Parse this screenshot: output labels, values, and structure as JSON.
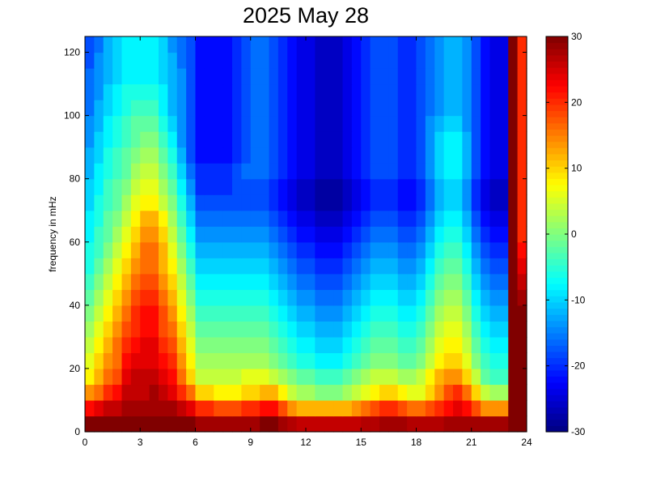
{
  "chart_data": {
    "type": "heatmap",
    "title": "2025 May 28",
    "xlabel": "",
    "ylabel": "frequency in mHz",
    "xlim": [
      0,
      24
    ],
    "ylim": [
      0,
      125
    ],
    "x_ticks": [
      0,
      3,
      6,
      9,
      12,
      15,
      18,
      21,
      24
    ],
    "y_ticks": [
      0,
      20,
      40,
      60,
      80,
      100,
      120
    ],
    "colorbar": {
      "colormap": "jet",
      "range": [
        -30,
        30
      ],
      "ticks": [
        -30,
        -20,
        -10,
        0,
        10,
        20,
        30
      ],
      "unit": ""
    },
    "grid": false,
    "x_cells": 48,
    "y_cells": 25,
    "x_values_hours": [
      0.25,
      0.75,
      1.25,
      1.75,
      2.25,
      2.75,
      3.25,
      3.75,
      4.25,
      4.75,
      5.25,
      5.75,
      6.25,
      6.75,
      7.25,
      7.75,
      8.25,
      8.75,
      9.25,
      9.75,
      10.25,
      10.75,
      11.25,
      11.75,
      12.25,
      12.75,
      13.25,
      13.75,
      14.25,
      14.75,
      15.25,
      15.75,
      16.25,
      16.75,
      17.25,
      17.75,
      18.25,
      18.75,
      19.25,
      19.75,
      20.25,
      20.75,
      21.25,
      21.75,
      22.25,
      22.75,
      23.25,
      23.75
    ],
    "y_values_mHz": [
      2.5,
      7.5,
      12.5,
      17.5,
      22.5,
      27.5,
      32.5,
      37.5,
      42.5,
      47.5,
      52.5,
      57.5,
      62.5,
      67.5,
      72.5,
      77.5,
      82.5,
      87.5,
      92.5,
      97.5,
      102.5,
      107.5,
      112.5,
      117.5,
      122.5
    ],
    "z_approx": {
      "description_rows": "approximate power level (colorbar units) per frequency band (rows, low→high) and half-hour (columns)",
      "rows": [
        [
          30,
          30,
          30,
          30,
          30,
          30,
          30,
          30,
          30,
          30,
          30,
          30,
          28,
          28,
          28,
          28,
          28,
          28,
          28,
          30,
          30,
          28,
          27,
          26,
          26,
          26,
          26,
          26,
          26,
          26,
          27,
          27,
          28,
          28,
          28,
          27,
          27,
          27,
          27,
          28,
          28,
          28,
          28,
          28,
          28,
          28,
          30,
          30
        ],
        [
          22,
          24,
          26,
          26,
          28,
          28,
          28,
          28,
          28,
          28,
          26,
          24,
          20,
          20,
          18,
          18,
          18,
          20,
          20,
          22,
          22,
          18,
          14,
          12,
          12,
          12,
          12,
          12,
          12,
          14,
          16,
          18,
          20,
          20,
          18,
          16,
          16,
          18,
          20,
          22,
          24,
          22,
          18,
          14,
          14,
          14,
          30,
          30
        ],
        [
          14,
          16,
          20,
          22,
          26,
          26,
          26,
          28,
          26,
          24,
          20,
          16,
          10,
          10,
          8,
          8,
          8,
          10,
          10,
          12,
          12,
          8,
          4,
          2,
          2,
          0,
          0,
          0,
          2,
          4,
          6,
          8,
          10,
          10,
          8,
          6,
          6,
          10,
          14,
          18,
          20,
          16,
          10,
          4,
          2,
          2,
          30,
          30
        ],
        [
          8,
          12,
          16,
          18,
          24,
          26,
          26,
          26,
          24,
          22,
          16,
          10,
          4,
          4,
          4,
          4,
          4,
          6,
          6,
          6,
          4,
          2,
          0,
          -2,
          -2,
          -4,
          -4,
          -4,
          -2,
          0,
          2,
          4,
          4,
          4,
          2,
          2,
          4,
          8,
          12,
          14,
          14,
          10,
          4,
          -2,
          -4,
          -4,
          30,
          30
        ],
        [
          6,
          10,
          14,
          16,
          22,
          24,
          24,
          24,
          22,
          20,
          14,
          8,
          2,
          2,
          2,
          2,
          2,
          2,
          2,
          2,
          0,
          -2,
          -4,
          -6,
          -6,
          -8,
          -8,
          -8,
          -6,
          -4,
          -2,
          0,
          0,
          0,
          -2,
          -2,
          0,
          4,
          8,
          10,
          10,
          6,
          0,
          -4,
          -6,
          -6,
          30,
          30
        ],
        [
          4,
          8,
          12,
          16,
          20,
          22,
          24,
          24,
          20,
          18,
          12,
          6,
          0,
          0,
          0,
          0,
          0,
          0,
          0,
          0,
          -2,
          -4,
          -6,
          -8,
          -8,
          -10,
          -10,
          -10,
          -8,
          -6,
          -4,
          -2,
          -2,
          -2,
          -4,
          -4,
          -2,
          2,
          6,
          8,
          8,
          4,
          -2,
          -6,
          -8,
          -8,
          30,
          30
        ],
        [
          2,
          6,
          10,
          14,
          18,
          20,
          22,
          22,
          18,
          16,
          10,
          4,
          -2,
          -2,
          -2,
          -2,
          -2,
          -2,
          -2,
          -2,
          -4,
          -6,
          -8,
          -10,
          -10,
          -12,
          -12,
          -12,
          -10,
          -8,
          -6,
          -4,
          -4,
          -4,
          -6,
          -6,
          -4,
          0,
          4,
          6,
          6,
          2,
          -4,
          -8,
          -10,
          -10,
          30,
          30
        ],
        [
          0,
          4,
          8,
          12,
          16,
          20,
          22,
          22,
          18,
          14,
          8,
          2,
          -4,
          -4,
          -4,
          -4,
          -4,
          -4,
          -4,
          -4,
          -6,
          -8,
          -10,
          -12,
          -12,
          -14,
          -14,
          -14,
          -12,
          -10,
          -8,
          -6,
          -6,
          -6,
          -8,
          -8,
          -6,
          -2,
          2,
          4,
          4,
          0,
          -6,
          -10,
          -12,
          -12,
          30,
          30
        ],
        [
          -2,
          2,
          6,
          10,
          14,
          18,
          20,
          20,
          16,
          12,
          6,
          0,
          -6,
          -6,
          -6,
          -6,
          -6,
          -6,
          -6,
          -6,
          -8,
          -10,
          -12,
          -14,
          -14,
          -16,
          -16,
          -16,
          -14,
          -12,
          -10,
          -8,
          -8,
          -8,
          -10,
          -10,
          -8,
          -4,
          0,
          2,
          2,
          -2,
          -8,
          -12,
          -14,
          -14,
          30,
          28
        ],
        [
          -4,
          0,
          4,
          8,
          12,
          16,
          18,
          18,
          14,
          10,
          4,
          -2,
          -8,
          -8,
          -8,
          -8,
          -8,
          -8,
          -8,
          -8,
          -10,
          -12,
          -14,
          -16,
          -16,
          -18,
          -18,
          -18,
          -16,
          -14,
          -12,
          -10,
          -10,
          -10,
          -12,
          -12,
          -10,
          -6,
          -2,
          0,
          0,
          -4,
          -10,
          -14,
          -16,
          -16,
          30,
          26
        ],
        [
          -6,
          -2,
          2,
          6,
          10,
          14,
          16,
          16,
          12,
          8,
          2,
          -4,
          -10,
          -10,
          -10,
          -10,
          -10,
          -10,
          -10,
          -10,
          -12,
          -14,
          -16,
          -18,
          -18,
          -20,
          -20,
          -20,
          -18,
          -16,
          -14,
          -12,
          -12,
          -12,
          -14,
          -14,
          -12,
          -8,
          -4,
          -2,
          -2,
          -6,
          -12,
          -16,
          -18,
          -18,
          30,
          24
        ],
        [
          -6,
          -4,
          0,
          4,
          8,
          12,
          16,
          16,
          12,
          6,
          0,
          -6,
          -12,
          -12,
          -12,
          -12,
          -12,
          -12,
          -12,
          -12,
          -14,
          -16,
          -18,
          -20,
          -20,
          -22,
          -22,
          -22,
          -20,
          -18,
          -16,
          -14,
          -14,
          -14,
          -16,
          -16,
          -14,
          -10,
          -6,
          -4,
          -4,
          -8,
          -14,
          -18,
          -20,
          -20,
          30,
          22
        ],
        [
          -8,
          -4,
          -2,
          2,
          6,
          10,
          14,
          14,
          10,
          4,
          -2,
          -8,
          -14,
          -14,
          -14,
          -14,
          -14,
          -14,
          -14,
          -14,
          -16,
          -18,
          -20,
          -22,
          -22,
          -24,
          -24,
          -24,
          -22,
          -20,
          -18,
          -16,
          -16,
          -16,
          -18,
          -18,
          -16,
          -12,
          -8,
          -6,
          -6,
          -10,
          -16,
          -20,
          -22,
          -22,
          30,
          20
        ],
        [
          -8,
          -6,
          -2,
          0,
          4,
          8,
          12,
          12,
          8,
          2,
          -4,
          -10,
          -16,
          -16,
          -16,
          -16,
          -16,
          -16,
          -16,
          -16,
          -18,
          -20,
          -22,
          -24,
          -24,
          -26,
          -26,
          -26,
          -24,
          -22,
          -20,
          -18,
          -18,
          -18,
          -20,
          -20,
          -18,
          -14,
          -10,
          -8,
          -8,
          -12,
          -18,
          -22,
          -24,
          -24,
          30,
          20
        ],
        [
          -10,
          -6,
          -4,
          -2,
          2,
          6,
          8,
          8,
          4,
          0,
          -6,
          -12,
          -18,
          -18,
          -18,
          -18,
          -18,
          -18,
          -18,
          -18,
          -20,
          -22,
          -24,
          -26,
          -26,
          -28,
          -28,
          -28,
          -26,
          -24,
          -22,
          -20,
          -20,
          -20,
          -22,
          -22,
          -20,
          -16,
          -12,
          -10,
          -10,
          -14,
          -20,
          -24,
          -26,
          -26,
          30,
          20
        ],
        [
          -10,
          -8,
          -4,
          -2,
          0,
          4,
          6,
          6,
          2,
          -2,
          -8,
          -14,
          -20,
          -20,
          -20,
          -20,
          -18,
          -18,
          -18,
          -18,
          -20,
          -22,
          -24,
          -26,
          -26,
          -28,
          -28,
          -28,
          -26,
          -24,
          -22,
          -20,
          -20,
          -20,
          -22,
          -22,
          -20,
          -16,
          -12,
          -10,
          -10,
          -14,
          -20,
          -24,
          -26,
          -26,
          30,
          20
        ],
        [
          -12,
          -8,
          -6,
          -4,
          -2,
          2,
          4,
          4,
          0,
          -4,
          -10,
          -16,
          -20,
          -20,
          -20,
          -20,
          -18,
          -16,
          -16,
          -16,
          -18,
          -20,
          -22,
          -24,
          -24,
          -26,
          -26,
          -26,
          -24,
          -22,
          -20,
          -18,
          -18,
          -18,
          -20,
          -20,
          -18,
          -14,
          -10,
          -8,
          -8,
          -12,
          -18,
          -22,
          -24,
          -24,
          30,
          20
        ],
        [
          -12,
          -10,
          -6,
          -4,
          -2,
          0,
          2,
          2,
          -2,
          -6,
          -12,
          -18,
          -22,
          -22,
          -22,
          -22,
          -20,
          -18,
          -16,
          -16,
          -18,
          -20,
          -22,
          -24,
          -24,
          -26,
          -26,
          -26,
          -24,
          -22,
          -20,
          -18,
          -18,
          -18,
          -20,
          -20,
          -18,
          -14,
          -10,
          -8,
          -8,
          -12,
          -18,
          -22,
          -24,
          -24,
          30,
          20
        ],
        [
          -14,
          -10,
          -8,
          -6,
          -4,
          -2,
          0,
          0,
          -4,
          -8,
          -14,
          -18,
          -22,
          -22,
          -22,
          -22,
          -20,
          -18,
          -16,
          -16,
          -18,
          -20,
          -22,
          -24,
          -24,
          -26,
          -26,
          -26,
          -24,
          -22,
          -20,
          -18,
          -18,
          -18,
          -20,
          -20,
          -18,
          -14,
          -10,
          -8,
          -8,
          -12,
          -18,
          -22,
          -24,
          -24,
          30,
          20
        ],
        [
          -14,
          -12,
          -8,
          -6,
          -4,
          -2,
          -2,
          -2,
          -6,
          -10,
          -14,
          -18,
          -22,
          -22,
          -22,
          -22,
          -20,
          -18,
          -16,
          -16,
          -18,
          -20,
          -22,
          -24,
          -24,
          -26,
          -26,
          -26,
          -24,
          -22,
          -20,
          -18,
          -18,
          -18,
          -20,
          -20,
          -18,
          -14,
          -12,
          -10,
          -10,
          -14,
          -18,
          -22,
          -24,
          -24,
          30,
          20
        ],
        [
          -16,
          -12,
          -10,
          -8,
          -6,
          -4,
          -4,
          -4,
          -8,
          -12,
          -14,
          -18,
          -22,
          -22,
          -22,
          -22,
          -20,
          -18,
          -16,
          -16,
          -18,
          -20,
          -22,
          -24,
          -24,
          -26,
          -26,
          -26,
          -24,
          -22,
          -20,
          -18,
          -18,
          -18,
          -20,
          -20,
          -18,
          -16,
          -14,
          -12,
          -12,
          -14,
          -18,
          -22,
          -24,
          -24,
          30,
          20
        ],
        [
          -16,
          -14,
          -10,
          -8,
          -6,
          -6,
          -6,
          -6,
          -8,
          -12,
          -14,
          -18,
          -22,
          -22,
          -22,
          -22,
          -20,
          -18,
          -16,
          -16,
          -18,
          -20,
          -22,
          -24,
          -24,
          -26,
          -26,
          -26,
          -24,
          -22,
          -20,
          -18,
          -18,
          -18,
          -20,
          -20,
          -18,
          -16,
          -14,
          -12,
          -12,
          -14,
          -18,
          -22,
          -24,
          -24,
          30,
          20
        ],
        [
          -16,
          -14,
          -12,
          -10,
          -8,
          -8,
          -8,
          -8,
          -10,
          -12,
          -14,
          -18,
          -22,
          -22,
          -22,
          -22,
          -20,
          -18,
          -16,
          -16,
          -18,
          -20,
          -22,
          -24,
          -24,
          -26,
          -26,
          -26,
          -24,
          -22,
          -20,
          -18,
          -18,
          -18,
          -20,
          -20,
          -18,
          -16,
          -14,
          -12,
          -12,
          -14,
          -18,
          -22,
          -24,
          -24,
          30,
          20
        ],
        [
          -18,
          -14,
          -12,
          -10,
          -8,
          -8,
          -8,
          -8,
          -10,
          -12,
          -16,
          -18,
          -22,
          -22,
          -22,
          -22,
          -20,
          -18,
          -16,
          -16,
          -18,
          -20,
          -22,
          -24,
          -24,
          -26,
          -26,
          -26,
          -24,
          -22,
          -20,
          -18,
          -18,
          -18,
          -20,
          -20,
          -18,
          -16,
          -14,
          -12,
          -12,
          -14,
          -18,
          -22,
          -24,
          -24,
          30,
          20
        ],
        [
          -18,
          -16,
          -12,
          -10,
          -8,
          -8,
          -8,
          -8,
          -10,
          -14,
          -16,
          -18,
          -22,
          -22,
          -22,
          -22,
          -20,
          -18,
          -16,
          -16,
          -18,
          -20,
          -22,
          -24,
          -24,
          -26,
          -26,
          -26,
          -24,
          -22,
          -20,
          -18,
          -18,
          -18,
          -20,
          -20,
          -18,
          -16,
          -14,
          -12,
          -12,
          -14,
          -18,
          -22,
          -24,
          -24,
          30,
          20
        ]
      ]
    }
  }
}
